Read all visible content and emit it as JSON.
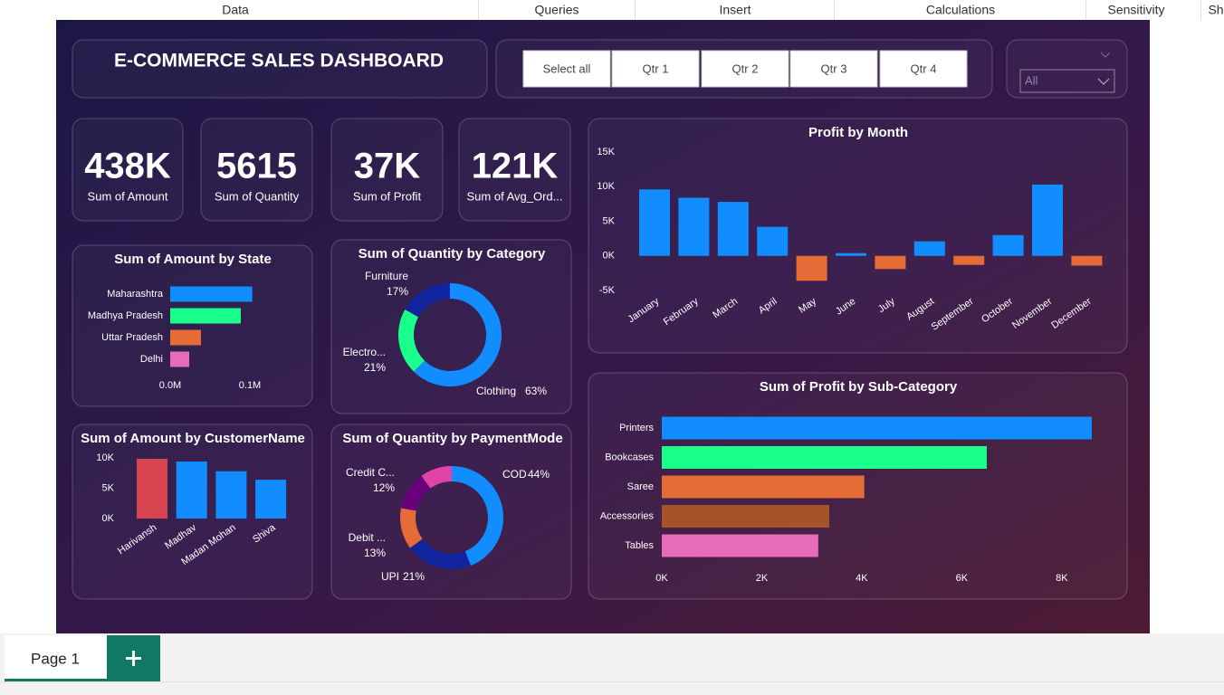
{
  "ribbon": {
    "tabs": [
      "Data",
      "Queries",
      "Insert",
      "Calculations",
      "Sensitivity",
      "Sh"
    ]
  },
  "header": {
    "title": "E-COMMERCE SALES DASHBOARD"
  },
  "slicer": {
    "buttons": [
      "Select all",
      "Qtr 1",
      "Qtr 2",
      "Qtr 3",
      "Qtr 4"
    ]
  },
  "dropdown": {
    "value": "All"
  },
  "kpis": [
    {
      "value": "438K",
      "label": "Sum of Amount"
    },
    {
      "value": "5615",
      "label": "Sum of Quantity"
    },
    {
      "value": "37K",
      "label": "Sum of Profit"
    },
    {
      "value": "121K",
      "label": "Sum of Avg_Ord..."
    }
  ],
  "chart_data": [
    {
      "type": "hbar",
      "title": "Sum of Amount by State",
      "categories": [
        "Maharashtra",
        "Madhya Pradesh",
        "Uttar Pradesh",
        "Delhi"
      ],
      "values": [
        103000,
        88600,
        38600,
        23900
      ],
      "colors": [
        "#118dff",
        "#1aff8c",
        "#e66c37",
        "#e66bb8"
      ],
      "xlim": [
        0,
        125000
      ],
      "xticks": [
        {
          "value": 0,
          "label": "0.0M"
        },
        {
          "value": 100000,
          "label": "0.1M"
        }
      ]
    },
    {
      "type": "donut",
      "title": "Sum of Quantity by Category",
      "categories": [
        "Clothing",
        "Electro...",
        "Furniture"
      ],
      "values": [
        63,
        21,
        17
      ],
      "value_labels": [
        "63%",
        "21%",
        "17%"
      ],
      "colors": [
        "#118dff",
        "#1aff8c",
        "#12239e"
      ]
    },
    {
      "type": "vbar",
      "title": "Sum of Amount by CustomerName",
      "categories": [
        "Harivansh",
        "Madhav",
        "Madan Mohan",
        "Shiva"
      ],
      "values": [
        9850,
        9400,
        7800,
        6400
      ],
      "colors": [
        "#d64550",
        "#118dff",
        "#118dff",
        "#118dff"
      ],
      "ylim": [
        0,
        10000
      ],
      "yticks": [
        {
          "value": 0,
          "label": "0K"
        },
        {
          "value": 5000,
          "label": "5K"
        },
        {
          "value": 10000,
          "label": "10K"
        }
      ]
    },
    {
      "type": "donut",
      "title": "Sum of Quantity by PaymentMode",
      "categories": [
        "COD",
        "UPI",
        "Debit ...",
        "Credit C...",
        null
      ],
      "values": [
        44,
        21,
        13,
        12,
        10
      ],
      "value_labels": [
        "44%",
        "21%",
        "13%",
        "12%",
        null
      ],
      "colors": [
        "#118dff",
        "#12239e",
        "#e66c37",
        "#6b007b",
        "#e044a7"
      ]
    },
    {
      "type": "vbar",
      "title": "Profit by Month",
      "categories": [
        "January",
        "February",
        "March",
        "April",
        "May",
        "June",
        "July",
        "August",
        "September",
        "October",
        "November",
        "December"
      ],
      "values": [
        9600,
        8400,
        7800,
        4200,
        -3600,
        400,
        -1900,
        2100,
        -1300,
        3000,
        10300,
        -1400
      ],
      "color": "#118dff",
      "negative_color": "#e66c37",
      "ylim": [
        -5000,
        15000
      ],
      "yticks": [
        {
          "value": -5000,
          "label": "-5K"
        },
        {
          "value": 0,
          "label": "0K"
        },
        {
          "value": 5000,
          "label": "5K"
        },
        {
          "value": 10000,
          "label": "10K"
        },
        {
          "value": 15000,
          "label": "15K"
        }
      ]
    },
    {
      "type": "hbar",
      "title": "Sum of Profit by Sub-Category",
      "categories": [
        "Printers",
        "Bookcases",
        "Saree",
        "Accessories",
        "Tables"
      ],
      "values": [
        8600,
        6500,
        4050,
        3350,
        3130
      ],
      "colors": [
        "#118dff",
        "#1aff8c",
        "#e66c37",
        "#a6522b",
        "#e66bb8"
      ],
      "xlim": [
        0,
        8800
      ],
      "xticks": [
        {
          "value": 0,
          "label": "0K"
        },
        {
          "value": 2000,
          "label": "2K"
        },
        {
          "value": 4000,
          "label": "4K"
        },
        {
          "value": 6000,
          "label": "6K"
        },
        {
          "value": 8000,
          "label": "8K"
        }
      ]
    }
  ],
  "page_tabs": {
    "tabs": [
      "Page 1"
    ]
  }
}
